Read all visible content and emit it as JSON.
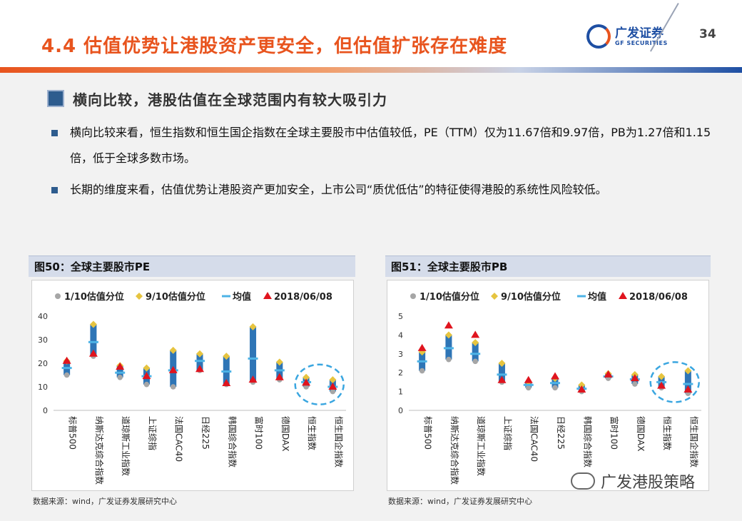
{
  "header": {
    "title": "4.4 估值优势让港股资产更安全，但估值扩张存在难度",
    "logo_cn": "广发证券",
    "logo_en": "GF SECURITIES",
    "page_number": "34"
  },
  "section": {
    "heading": "横向比较，港股估值在全球范围内有较大吸引力",
    "bullets": [
      "横向比较来看，恒生指数和恒生国企指数在全球主要股市中估值较低，PE（TTM）仅为11.67倍和9.97倍，PB为1.27倍和1.15倍，低于全球多数市场。",
      "长期的维度来看，估值优势让港股资产更加安全，上市公司“质优低估”的特征使得港股的系统性风险较低。"
    ]
  },
  "legend": {
    "p10": "1/10估值分位",
    "p90": "9/10估值分位",
    "mean": "均值",
    "current": "2018/06/08"
  },
  "colors": {
    "accent": "#e8541e",
    "brand": "#1e4fa3",
    "bar": "#2e75b6",
    "mean": "#4db3e6",
    "p10": "#a6a6a6",
    "p90": "#e6c440",
    "current": "#e0141e",
    "highlight": "#3aa6e0"
  },
  "chart_data": [
    {
      "type": "range",
      "title": "图50：全球主要股市PE",
      "source": "数据来源：wind，广发证券发展研究中心",
      "categories": [
        "标普500",
        "纳斯达克综合指数",
        "道琼斯工业指数",
        "上证综指",
        "法国CAC40",
        "日经225",
        "韩国综合指数",
        "富时100",
        "德国DAX",
        "恒生指数",
        "恒生国企指数"
      ],
      "yticks": [
        "0",
        "10",
        "20",
        "30",
        "40"
      ],
      "ylim": [
        0,
        40
      ],
      "series": [
        {
          "name": "1/10估值分位",
          "values": [
            15,
            23,
            14,
            11,
            10,
            17,
            11,
            12,
            13,
            10,
            8
          ]
        },
        {
          "name": "9/10估值分位",
          "values": [
            21,
            36.5,
            19,
            18,
            25.5,
            24,
            23,
            35.5,
            20.5,
            14,
            13
          ]
        },
        {
          "name": "均值",
          "values": [
            18,
            29,
            16,
            14.5,
            17,
            21,
            16.5,
            22,
            17,
            12,
            10
          ]
        },
        {
          "name": "2018/06/08",
          "values": [
            21,
            24,
            18.5,
            14.5,
            17,
            17.5,
            11.5,
            13,
            14,
            11.7,
            10
          ]
        }
      ]
    },
    {
      "type": "range",
      "title": "图51：全球主要股市PB",
      "source": "数据来源：wind，广发证券发展研究中心",
      "categories": [
        "标普500",
        "纳斯达克综合指数",
        "道琼斯工业指数",
        "上证综指",
        "法国CAC40",
        "日经225",
        "韩国综合指数",
        "富时100",
        "德国DAX",
        "恒生指数",
        "恒生国企指数"
      ],
      "yticks": [
        "0",
        "1",
        "2",
        "3",
        "4",
        "5"
      ],
      "ylim": [
        0,
        5
      ],
      "series": [
        {
          "name": "1/10估值分位",
          "values": [
            2.1,
            2.7,
            2.6,
            1.5,
            1.2,
            1.2,
            1.0,
            1.7,
            1.4,
            1.2,
            0.9
          ]
        },
        {
          "name": "9/10估值分位",
          "values": [
            3.1,
            4.0,
            3.6,
            2.5,
            1.5,
            1.7,
            1.35,
            1.95,
            1.9,
            1.8,
            2.1
          ]
        },
        {
          "name": "均值",
          "values": [
            2.6,
            3.3,
            3.0,
            1.9,
            1.35,
            1.45,
            1.15,
            1.8,
            1.65,
            1.5,
            1.4
          ]
        },
        {
          "name": "2018/06/08",
          "values": [
            3.3,
            4.5,
            4.0,
            1.6,
            1.6,
            1.8,
            1.1,
            1.9,
            1.7,
            1.3,
            1.1
          ]
        }
      ]
    }
  ],
  "watermark": {
    "text": "广发港股策略"
  }
}
